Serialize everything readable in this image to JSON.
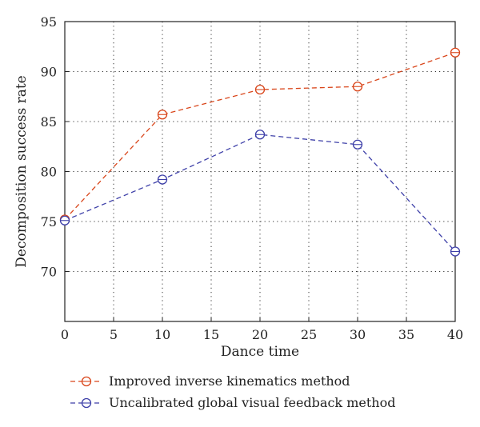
{
  "chart_data": {
    "type": "line",
    "title": "",
    "xlabel": "Dance time",
    "ylabel": "Decomposition success rate",
    "xlim": [
      0,
      40
    ],
    "ylim": [
      65,
      95
    ],
    "xticks": [
      0,
      5,
      10,
      15,
      20,
      25,
      30,
      35,
      40
    ],
    "yticks": [
      70,
      75,
      80,
      85,
      90,
      95
    ],
    "grid": true,
    "legend_position": "bottom",
    "x": [
      0,
      10,
      20,
      30,
      40
    ],
    "series": [
      {
        "name": "Improved inverse kinematics method",
        "color": "#d9461b",
        "marker": "circle",
        "line_style": "dashed",
        "values": [
          75.2,
          85.7,
          88.2,
          88.5,
          91.9
        ]
      },
      {
        "name": "Uncalibrated global visual feedback method",
        "color": "#3d3fa8",
        "marker": "circle",
        "line_style": "dashed",
        "values": [
          75.1,
          79.2,
          83.7,
          82.7,
          72.0
        ]
      }
    ]
  }
}
